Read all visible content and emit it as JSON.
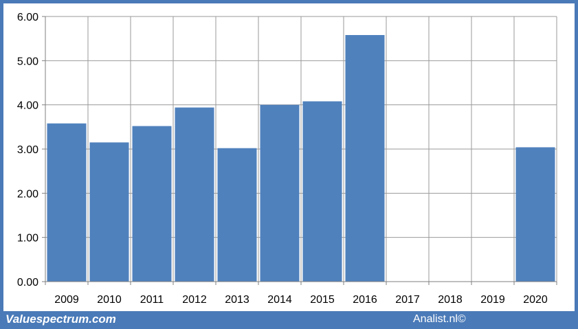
{
  "chart_data": {
    "type": "bar",
    "categories": [
      "2009",
      "2010",
      "2011",
      "2012",
      "2013",
      "2014",
      "2015",
      "2016",
      "2017",
      "2018",
      "2019",
      "2020"
    ],
    "values": [
      3.58,
      3.15,
      3.52,
      3.94,
      3.02,
      4.0,
      4.08,
      5.58,
      null,
      null,
      null,
      3.04
    ],
    "yticks": [
      "0.00",
      "1.00",
      "2.00",
      "3.00",
      "4.00",
      "5.00",
      "6.00"
    ],
    "ylim": [
      0,
      6
    ],
    "grid": true,
    "colors": {
      "bar": "#4f81bd",
      "frame": "#4a7ab8",
      "grid": "#9a9a9a"
    }
  },
  "footer": {
    "left_text": "Valuespectrum.com",
    "right_text": "Analist.nl©"
  }
}
